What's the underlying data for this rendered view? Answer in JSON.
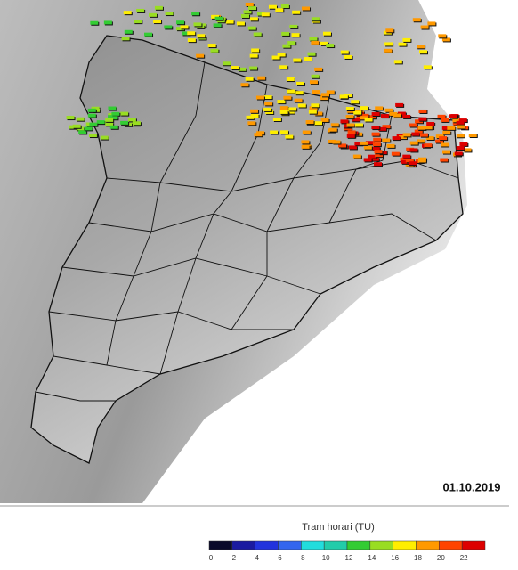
{
  "map": {
    "date": "01.10.2019"
  },
  "legend": {
    "title": "Tram horari (TU)",
    "ticks": [
      0,
      2,
      4,
      6,
      8,
      10,
      12,
      14,
      16,
      18,
      20,
      22
    ],
    "colors": [
      "#0a0a2a",
      "#1a1aa0",
      "#2233dd",
      "#3366ee",
      "#22dddd",
      "#22ccaa",
      "#33cc33",
      "#99dd22",
      "#ffee00",
      "#ff9900",
      "#ff4400",
      "#dd0000"
    ]
  }
}
